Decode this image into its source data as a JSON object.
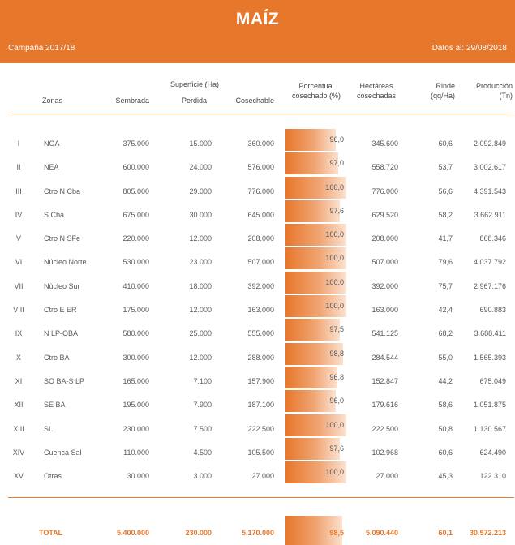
{
  "header": {
    "title": "MAÍZ",
    "campaign": "Campaña 2017/18",
    "date": "Datos al: 29/08/2018"
  },
  "columns": {
    "zonas": "Zonas",
    "superficie": "Superficie (Ha)",
    "sembrada": "Sembrada",
    "perdida": "Perdida",
    "cosechable": "Cosechable",
    "porcentual_1": "Porcentual",
    "porcentual_2": "cosechado (%)",
    "hectareas_1": "Hectáreas",
    "hectareas_2": "cosechadas",
    "rinde_1": "Rinde",
    "rinde_2": "(qq/Ha)",
    "produccion_1": "Producción",
    "produccion_2": "(Tn)"
  },
  "colors": {
    "accent": "#e7772b"
  },
  "rows": [
    {
      "roman": "I",
      "zone": "NOA",
      "sembrada": "375.000",
      "perdida": "15.000",
      "cosechable": "360.000",
      "pct": "96,0",
      "pct_value": 96.0,
      "hectareas": "345.600",
      "rinde": "60,6",
      "produccion": "2.092.849"
    },
    {
      "roman": "II",
      "zone": "NEA",
      "sembrada": "600.000",
      "perdida": "24.000",
      "cosechable": "576.000",
      "pct": "97,0",
      "pct_value": 97.0,
      "hectareas": "558.720",
      "rinde": "53,7",
      "produccion": "3.002.617"
    },
    {
      "roman": "III",
      "zone": "Ctro N Cba",
      "sembrada": "805.000",
      "perdida": "29.000",
      "cosechable": "776.000",
      "pct": "100,0",
      "pct_value": 100.0,
      "hectareas": "776.000",
      "rinde": "56,6",
      "produccion": "4.391.543"
    },
    {
      "roman": "IV",
      "zone": "S Cba",
      "sembrada": "675.000",
      "perdida": "30.000",
      "cosechable": "645.000",
      "pct": "97,6",
      "pct_value": 97.6,
      "hectareas": "629.520",
      "rinde": "58,2",
      "produccion": "3.662.911"
    },
    {
      "roman": "V",
      "zone": "Ctro N SFe",
      "sembrada": "220.000",
      "perdida": "12.000",
      "cosechable": "208.000",
      "pct": "100,0",
      "pct_value": 100.0,
      "hectareas": "208.000",
      "rinde": "41,7",
      "produccion": "868.346"
    },
    {
      "roman": "VI",
      "zone": "Núcleo Norte",
      "sembrada": "530.000",
      "perdida": "23.000",
      "cosechable": "507.000",
      "pct": "100,0",
      "pct_value": 100.0,
      "hectareas": "507.000",
      "rinde": "79,6",
      "produccion": "4.037.792"
    },
    {
      "roman": "VII",
      "zone": "Núcleo Sur",
      "sembrada": "410.000",
      "perdida": "18.000",
      "cosechable": "392.000",
      "pct": "100,0",
      "pct_value": 100.0,
      "hectareas": "392.000",
      "rinde": "75,7",
      "produccion": "2.967.176"
    },
    {
      "roman": "VIII",
      "zone": "Ctro E ER",
      "sembrada": "175.000",
      "perdida": "12.000",
      "cosechable": "163.000",
      "pct": "100,0",
      "pct_value": 100.0,
      "hectareas": "163.000",
      "rinde": "42,4",
      "produccion": "690.883"
    },
    {
      "roman": "IX",
      "zone": "N LP-OBA",
      "sembrada": "580.000",
      "perdida": "25.000",
      "cosechable": "555.000",
      "pct": "97,5",
      "pct_value": 97.5,
      "hectareas": "541.125",
      "rinde": "68,2",
      "produccion": "3.688.411"
    },
    {
      "roman": "X",
      "zone": "Ctro BA",
      "sembrada": "300.000",
      "perdida": "12.000",
      "cosechable": "288.000",
      "pct": "98,8",
      "pct_value": 98.8,
      "hectareas": "284.544",
      "rinde": "55,0",
      "produccion": "1.565.393"
    },
    {
      "roman": "XI",
      "zone": "SO BA-S LP",
      "sembrada": "165.000",
      "perdida": "7.100",
      "cosechable": "157.900",
      "pct": "96,8",
      "pct_value": 96.8,
      "hectareas": "152.847",
      "rinde": "44,2",
      "produccion": "675.049"
    },
    {
      "roman": "XII",
      "zone": "SE BA",
      "sembrada": "195.000",
      "perdida": "7.900",
      "cosechable": "187.100",
      "pct": "96,0",
      "pct_value": 96.0,
      "hectareas": "179.616",
      "rinde": "58,6",
      "produccion": "1.051.875"
    },
    {
      "roman": "XIII",
      "zone": "SL",
      "sembrada": "230.000",
      "perdida": "7.500",
      "cosechable": "222.500",
      "pct": "100,0",
      "pct_value": 100.0,
      "hectareas": "222.500",
      "rinde": "50,8",
      "produccion": "1.130.567"
    },
    {
      "roman": "XIV",
      "zone": "Cuenca Sal",
      "sembrada": "110.000",
      "perdida": "4.500",
      "cosechable": "105.500",
      "pct": "97,6",
      "pct_value": 97.6,
      "hectareas": "102.968",
      "rinde": "60,6",
      "produccion": "624.490"
    },
    {
      "roman": "XV",
      "zone": "Otras",
      "sembrada": "30.000",
      "perdida": "3.000",
      "cosechable": "27.000",
      "pct": "100,0",
      "pct_value": 100.0,
      "hectareas": "27.000",
      "rinde": "45,3",
      "produccion": "122.310"
    }
  ],
  "total": {
    "label": "TOTAL",
    "sembrada": "5.400.000",
    "perdida": "230.000",
    "cosechable": "5.170.000",
    "pct": "98,5",
    "pct_value": 98.5,
    "hectareas": "5.090.440",
    "rinde": "60,1",
    "produccion": "30.572.213"
  }
}
